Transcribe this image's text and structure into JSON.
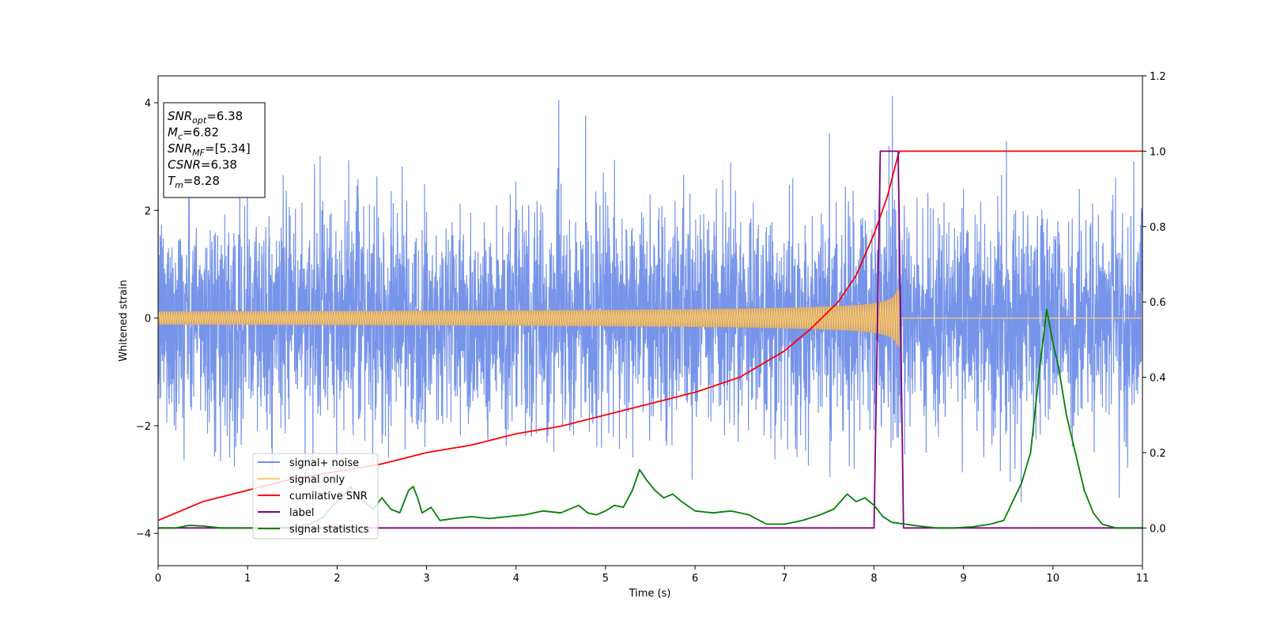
{
  "chart_data": {
    "type": "line",
    "xlabel": "Time (s)",
    "ylabel": "Whitened strain",
    "xlim": [
      0,
      11
    ],
    "ylim": [
      -4.6,
      4.5
    ],
    "y2lim": [
      -0.1,
      1.2
    ],
    "xticks": [
      0,
      1,
      2,
      3,
      4,
      5,
      6,
      7,
      8,
      9,
      10,
      11
    ],
    "xtick_labels": [
      "0",
      "1",
      "2",
      "3",
      "4",
      "5",
      "6",
      "7",
      "8",
      "9",
      "10",
      "11"
    ],
    "yticks": [
      -4,
      -2,
      0,
      2,
      4
    ],
    "ytick_labels": [
      "−4",
      "−2",
      "0",
      "2",
      "4"
    ],
    "y2ticks": [
      0.0,
      0.2,
      0.4,
      0.6,
      0.8,
      1.0,
      1.2
    ],
    "y2tick_labels": [
      "0.0",
      "0.2",
      "0.4",
      "0.6",
      "0.8",
      "1.0",
      "1.2"
    ],
    "grid": false,
    "legend_position": "lower-left",
    "annotation": {
      "lines": [
        {
          "sym": "SNR",
          "sub": "opt",
          "text": "=6.38"
        },
        {
          "sym": "M",
          "sub": "c",
          "text": "=6.82"
        },
        {
          "sym": "SNR",
          "sub": "MF",
          "text": "=[5.34]"
        },
        {
          "sym": "CSNR",
          "sub": "",
          "text": "=6.38"
        },
        {
          "sym": "T",
          "sub": "m",
          "text": "=8.28"
        }
      ]
    },
    "series": [
      {
        "name": "signal+ noise",
        "color": "#6f8ee8",
        "axis": "left",
        "kind": "noise",
        "sigma": 1.0,
        "x_range": [
          0,
          11
        ]
      },
      {
        "name": "signal only",
        "color": "#fcc96b",
        "axis": "left",
        "kind": "chirp",
        "merger_time": 8.28,
        "peak_amplitude": 0.55
      },
      {
        "name": "cumilative SNR",
        "color": "#ff0000",
        "axis": "right",
        "x": [
          0,
          0.5,
          1,
          1.5,
          2,
          2.5,
          3,
          3.5,
          4,
          4.5,
          5,
          5.5,
          6,
          6.5,
          7,
          7.3,
          7.6,
          7.8,
          8.0,
          8.15,
          8.28,
          11
        ],
        "values": [
          0.02,
          0.07,
          0.1,
          0.13,
          0.15,
          0.17,
          0.2,
          0.22,
          0.25,
          0.27,
          0.3,
          0.33,
          0.36,
          0.4,
          0.47,
          0.53,
          0.6,
          0.67,
          0.78,
          0.88,
          1.0,
          1.0
        ]
      },
      {
        "name": "label",
        "color": "#800080",
        "axis": "right",
        "x": [
          0,
          8.0,
          8.07,
          8.27,
          8.33,
          11
        ],
        "values": [
          0,
          0,
          1,
          1,
          0,
          0
        ]
      },
      {
        "name": "signal statistics",
        "color": "#008000",
        "axis": "right",
        "x": [
          0,
          0.2,
          0.35,
          0.5,
          0.7,
          0.9,
          1.2,
          1.5,
          1.7,
          1.85,
          1.95,
          2.05,
          2.15,
          2.2,
          2.3,
          2.4,
          2.5,
          2.6,
          2.7,
          2.8,
          2.85,
          2.9,
          2.95,
          3.05,
          3.15,
          3.3,
          3.5,
          3.7,
          3.9,
          4.1,
          4.3,
          4.5,
          4.7,
          4.8,
          4.9,
          5.0,
          5.1,
          5.2,
          5.3,
          5.38,
          5.45,
          5.55,
          5.65,
          5.75,
          5.85,
          6.0,
          6.2,
          6.4,
          6.6,
          6.8,
          7.0,
          7.2,
          7.4,
          7.55,
          7.7,
          7.8,
          7.9,
          8.0,
          8.1,
          8.2,
          8.35,
          8.5,
          8.7,
          8.9,
          9.1,
          9.3,
          9.45,
          9.55,
          9.65,
          9.75,
          9.85,
          9.93,
          10.0,
          10.06,
          10.15,
          10.25,
          10.35,
          10.45,
          10.55,
          10.7,
          10.9,
          11.0
        ],
        "values": [
          0.0,
          0.0,
          0.007,
          0.005,
          0.0,
          0.0,
          0.0,
          0.002,
          0.01,
          0.03,
          0.06,
          0.08,
          0.11,
          0.09,
          0.07,
          0.05,
          0.08,
          0.05,
          0.04,
          0.1,
          0.11,
          0.08,
          0.04,
          0.055,
          0.02,
          0.025,
          0.03,
          0.025,
          0.03,
          0.035,
          0.045,
          0.04,
          0.06,
          0.04,
          0.035,
          0.045,
          0.06,
          0.055,
          0.1,
          0.155,
          0.13,
          0.1,
          0.08,
          0.09,
          0.07,
          0.045,
          0.04,
          0.045,
          0.035,
          0.01,
          0.01,
          0.02,
          0.035,
          0.05,
          0.09,
          0.07,
          0.08,
          0.06,
          0.03,
          0.015,
          0.01,
          0.005,
          0.0,
          0.0,
          0.003,
          0.01,
          0.02,
          0.07,
          0.12,
          0.2,
          0.42,
          0.58,
          0.49,
          0.43,
          0.3,
          0.2,
          0.1,
          0.04,
          0.01,
          0.0,
          0.0,
          0.0
        ]
      }
    ]
  }
}
